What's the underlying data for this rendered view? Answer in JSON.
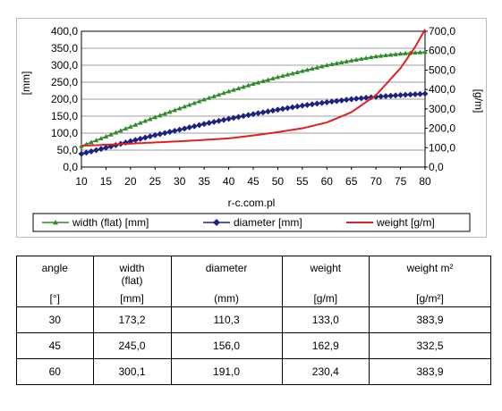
{
  "chart_data": {
    "type": "line",
    "xlabel": "r-c.com.pl",
    "xticks": [
      "10",
      "15",
      "20",
      "25",
      "30",
      "35",
      "40",
      "45",
      "50",
      "55",
      "60",
      "65",
      "70",
      "75",
      "80"
    ],
    "xlim": [
      10,
      80
    ],
    "y_left": {
      "label": "[mm]",
      "ylim": [
        0,
        400
      ],
      "ticks": [
        "0,0",
        "50,0",
        "100,0",
        "150,0",
        "200,0",
        "250,0",
        "300,0",
        "350,0",
        "400,0"
      ]
    },
    "y_right": {
      "label": "[g/m]",
      "ylim": [
        0,
        700
      ],
      "ticks": [
        "0,0",
        "100,0",
        "200,0",
        "300,0",
        "400,0",
        "500,0",
        "600,0",
        "700,0"
      ]
    },
    "grid": "horizontal",
    "legend_position": "bottom",
    "series": [
      {
        "name": "width (flat) [mm]",
        "axis": "left",
        "color": "#2e8b2e",
        "marker": "triangle",
        "x": [
          10,
          15,
          20,
          25,
          30,
          35,
          40,
          45,
          50,
          55,
          60,
          65,
          70,
          75,
          80
        ],
        "values": [
          62,
          90,
          119,
          147,
          173,
          199,
          223,
          245,
          265,
          283,
          300,
          314,
          326,
          334,
          339
        ]
      },
      {
        "name": "diameter [mm]",
        "axis": "left",
        "color": "#1a237e",
        "marker": "diamond",
        "x": [
          10,
          15,
          20,
          25,
          30,
          35,
          40,
          45,
          50,
          55,
          60,
          65,
          70,
          75,
          80
        ],
        "values": [
          39,
          57,
          76,
          94,
          110,
          127,
          142,
          156,
          169,
          181,
          191,
          200,
          207,
          212,
          216
        ]
      },
      {
        "name": "weight [g/m]",
        "axis": "right",
        "color": "#e02020",
        "marker": "none",
        "x": [
          10,
          15,
          20,
          25,
          30,
          35,
          40,
          45,
          50,
          55,
          60,
          65,
          70,
          75,
          78,
          80
        ],
        "values": [
          110,
          115,
          121,
          127,
          133,
          140,
          148,
          163,
          180,
          200,
          230,
          283,
          370,
          510,
          620,
          710
        ]
      }
    ]
  },
  "table": {
    "headers": [
      {
        "top": "angle",
        "bottom": "[°]"
      },
      {
        "top": "width",
        "top2": "(flat)",
        "bottom": "[mm]"
      },
      {
        "top": "diameter",
        "bottom": "(mm)"
      },
      {
        "top": "weight",
        "bottom": "[g/m]"
      },
      {
        "top": "weight m²",
        "bottom": "[g/m²]"
      }
    ],
    "rows": [
      [
        "30",
        "173,2",
        "110,3",
        "133,0",
        "383,9"
      ],
      [
        "45",
        "245,0",
        "156,0",
        "162,9",
        "332,5"
      ],
      [
        "60",
        "300,1",
        "191,0",
        "230,4",
        "383,9"
      ]
    ]
  }
}
